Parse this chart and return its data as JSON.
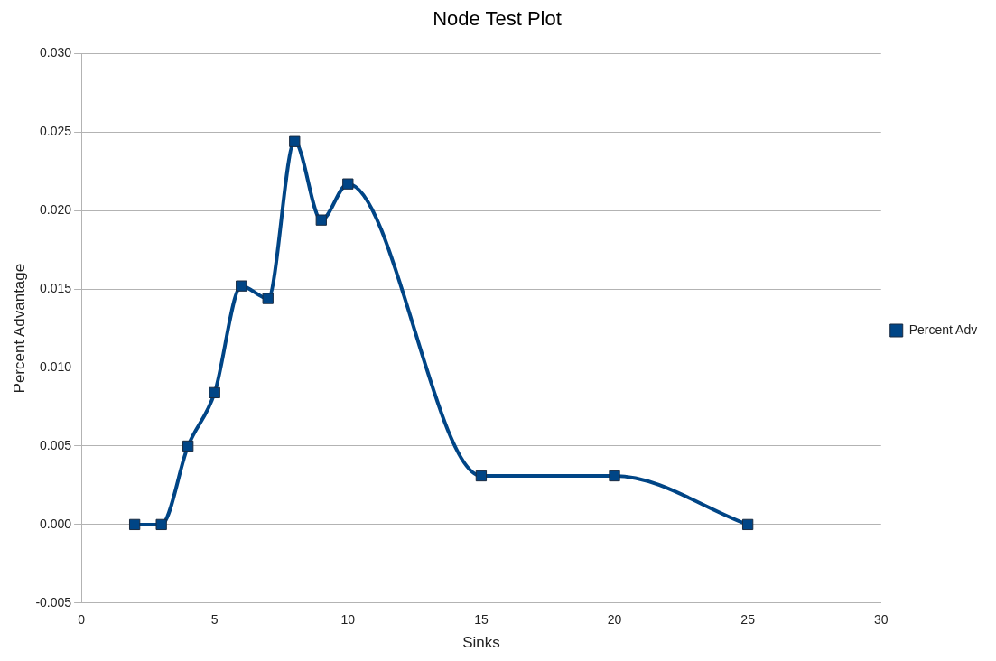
{
  "chart_data": {
    "type": "line",
    "title": "Node Test Plot",
    "xlabel": "Sinks",
    "ylabel": "Percent Advantage",
    "x": [
      2,
      3,
      4,
      5,
      6,
      7,
      8,
      9,
      10,
      15,
      20,
      25
    ],
    "series": [
      {
        "name": "Percent Adv",
        "color": "#004586",
        "values": [
          0,
          0,
          0.005,
          0.0084,
          0.0152,
          0.0144,
          0.0244,
          0.0194,
          0.0217,
          0.0031,
          0.0031,
          0
        ]
      }
    ],
    "xlim": [
      0,
      30
    ],
    "xticks": [
      0,
      5,
      10,
      15,
      20,
      25,
      30
    ],
    "ylim": [
      -0.005,
      0.03
    ],
    "yticks": [
      {
        "value": -0.005,
        "label": "-0.005"
      },
      {
        "value": 0,
        "label": "0.000"
      },
      {
        "value": 0.005,
        "label": "0.005"
      },
      {
        "value": 0.01,
        "label": "0.010"
      },
      {
        "value": 0.015,
        "label": "0.015"
      },
      {
        "value": 0.02,
        "label": "0.020"
      },
      {
        "value": 0.025,
        "label": "0.025"
      },
      {
        "value": 0.03,
        "label": "0.030"
      }
    ],
    "grid": "y",
    "legend": "right",
    "marker": "square",
    "line_style": "solid"
  }
}
